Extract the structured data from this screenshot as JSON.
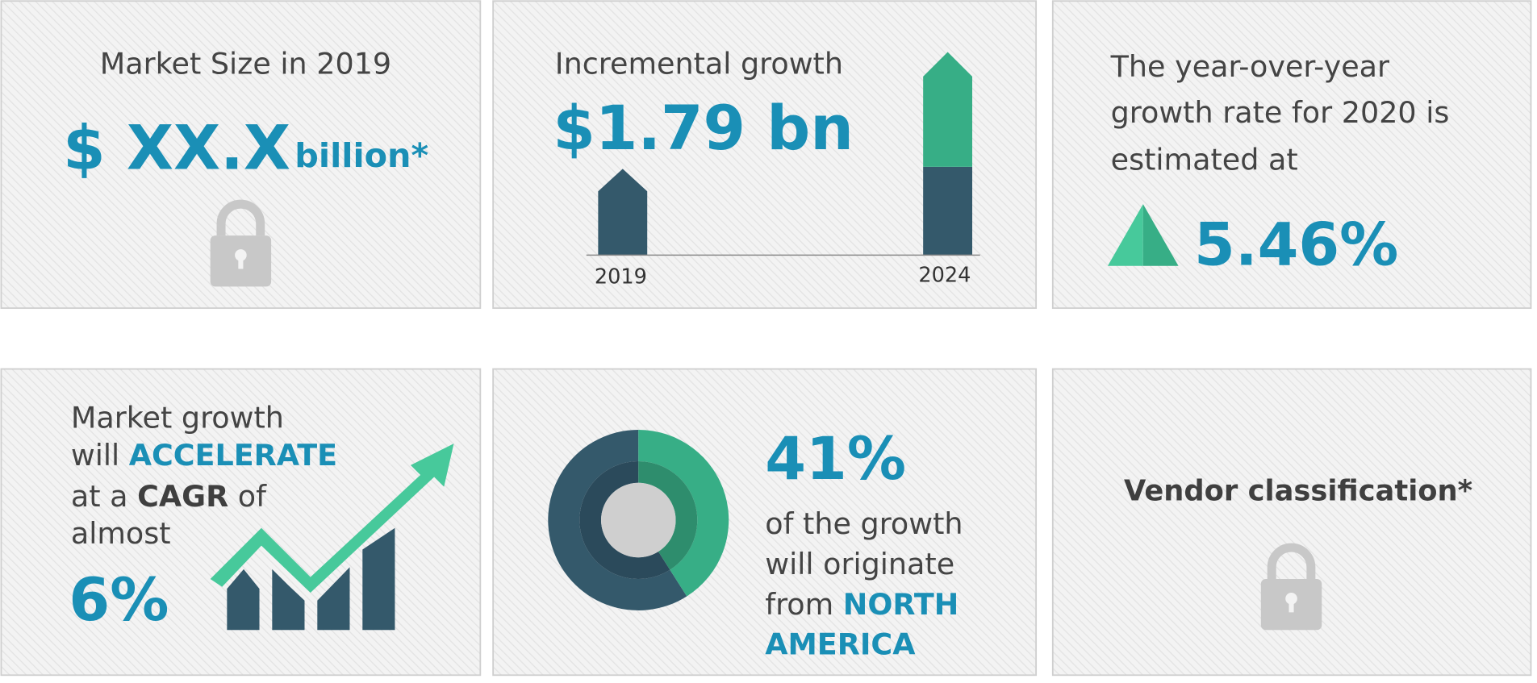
{
  "cards": [
    {
      "title": "Market Size in 2019",
      "value": "$ XX.X",
      "unit": "billion*"
    },
    {
      "title": "Incremental growth",
      "value": "$1.79 bn",
      "labels": [
        "2019",
        "2024"
      ]
    },
    {
      "lines": [
        "The year-over-year",
        "growth rate for 2020 is",
        "estimated at"
      ],
      "value": "5.46%"
    },
    {
      "lines": [
        [
          "Market growth"
        ],
        [
          "will ",
          "ACCELERATE"
        ],
        [
          "at a ",
          "CAGR",
          " of"
        ],
        [
          "almost"
        ]
      ],
      "value": "6%"
    },
    {
      "share": {
        "value": 41,
        "label": "41%"
      },
      "lines": [
        [
          "of the growth"
        ],
        [
          "will originate"
        ],
        [
          "from ",
          "NORTH"
        ],
        [
          "AMERICA"
        ]
      ]
    },
    {
      "title": "Vendor classification*"
    }
  ]
}
